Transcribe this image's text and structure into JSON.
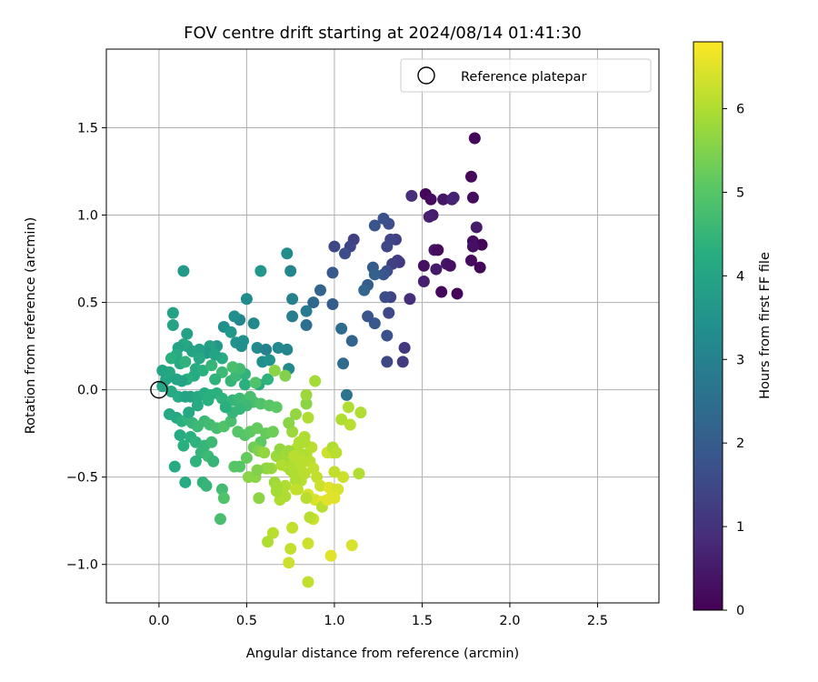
{
  "chart_data": {
    "type": "scatter",
    "title": "FOV centre drift starting at 2024/08/14 01:41:30",
    "xlabel": "Angular distance from reference (arcmin)",
    "ylabel": "Rotation from reference (arcmin)",
    "xlim": [
      -0.3,
      2.85
    ],
    "ylim": [
      -1.22,
      1.95
    ],
    "xticks": [
      0.0,
      0.5,
      1.0,
      1.5,
      2.0,
      2.5
    ],
    "xtick_labels": [
      "0.0",
      "0.5",
      "1.0",
      "1.5",
      "2.0",
      "2.5"
    ],
    "yticks": [
      -1.0,
      -0.5,
      0.0,
      0.5,
      1.0,
      1.5
    ],
    "ytick_labels": [
      "−1.0",
      "−0.5",
      "0.0",
      "0.5",
      "1.0",
      "1.5"
    ],
    "grid": true,
    "legend": {
      "position": "top-right",
      "entries": [
        "Reference platepar"
      ]
    },
    "reference_point": {
      "x": 0.0,
      "y": 0.0
    },
    "colorbar": {
      "label": "Hours from first FF file",
      "colormap": "viridis",
      "range": [
        0,
        6.8
      ],
      "ticks": [
        0,
        1,
        2,
        3,
        4,
        5,
        6
      ],
      "tick_labels": [
        "0",
        "1",
        "2",
        "3",
        "4",
        "5",
        "6"
      ]
    },
    "points": [
      [
        1.8,
        1.44,
        0.1
      ],
      [
        1.78,
        1.22,
        0.15
      ],
      [
        1.79,
        1.1,
        0.2
      ],
      [
        1.52,
        1.12,
        0.1
      ],
      [
        1.55,
        1.09,
        0.2
      ],
      [
        1.56,
        1.0,
        0.5
      ],
      [
        1.54,
        0.99,
        0.6
      ],
      [
        1.62,
        1.09,
        0.4
      ],
      [
        1.67,
        1.09,
        0.6
      ],
      [
        1.68,
        1.1,
        0.7
      ],
      [
        1.44,
        1.11,
        0.9
      ],
      [
        1.81,
        0.93,
        0.5
      ],
      [
        1.79,
        0.85,
        0.2
      ],
      [
        1.84,
        0.83,
        0.1
      ],
      [
        1.79,
        0.82,
        0.3
      ],
      [
        1.57,
        0.8,
        0.4
      ],
      [
        1.59,
        0.8,
        0.2
      ],
      [
        1.51,
        0.71,
        0.3
      ],
      [
        1.58,
        0.69,
        0.5
      ],
      [
        1.64,
        0.72,
        0.4
      ],
      [
        1.66,
        0.71,
        0.3
      ],
      [
        1.78,
        0.74,
        0.2
      ],
      [
        1.83,
        0.7,
        0.1
      ],
      [
        1.61,
        0.56,
        0.1
      ],
      [
        1.7,
        0.55,
        0.1
      ],
      [
        1.51,
        0.62,
        0.6
      ],
      [
        1.43,
        0.52,
        0.9
      ],
      [
        1.37,
        0.73,
        1.1
      ],
      [
        1.35,
        0.86,
        1.3
      ],
      [
        1.32,
        0.86,
        1.4
      ],
      [
        1.3,
        0.82,
        1.5
      ],
      [
        1.31,
        0.95,
        1.6
      ],
      [
        1.28,
        0.98,
        1.7
      ],
      [
        1.23,
        0.94,
        1.8
      ],
      [
        1.36,
        0.74,
        1.2
      ],
      [
        1.33,
        0.72,
        1.3
      ],
      [
        1.3,
        0.68,
        1.6
      ],
      [
        1.28,
        0.66,
        1.8
      ],
      [
        1.22,
        0.7,
        2.0
      ],
      [
        1.23,
        0.66,
        2.1
      ],
      [
        1.19,
        0.6,
        2.0
      ],
      [
        1.17,
        0.57,
        2.2
      ],
      [
        1.32,
        0.53,
        1.4
      ],
      [
        1.29,
        0.53,
        1.6
      ],
      [
        1.31,
        0.44,
        1.5
      ],
      [
        1.23,
        0.38,
        1.9
      ],
      [
        1.3,
        0.31,
        1.7
      ],
      [
        1.19,
        0.42,
        1.8
      ],
      [
        1.4,
        0.24,
        1.1
      ],
      [
        1.39,
        0.16,
        1.2
      ],
      [
        1.3,
        0.16,
        1.5
      ],
      [
        1.11,
        0.86,
        1.3
      ],
      [
        1.09,
        0.82,
        1.4
      ],
      [
        1.0,
        0.82,
        1.5
      ],
      [
        1.06,
        0.78,
        1.6
      ],
      [
        0.99,
        0.67,
        1.9
      ],
      [
        0.92,
        0.57,
        2.2
      ],
      [
        0.88,
        0.5,
        2.3
      ],
      [
        0.99,
        0.49,
        2.0
      ],
      [
        1.04,
        0.35,
        2.4
      ],
      [
        1.1,
        0.28,
        2.2
      ],
      [
        1.05,
        0.15,
        2.4
      ],
      [
        1.07,
        -0.03,
        2.6
      ],
      [
        0.84,
        0.37,
        2.5
      ],
      [
        0.84,
        0.45,
        2.8
      ],
      [
        0.76,
        0.42,
        2.9
      ],
      [
        0.76,
        0.52,
        3.0
      ],
      [
        0.73,
        0.78,
        3.3
      ],
      [
        0.75,
        0.68,
        3.1
      ],
      [
        0.58,
        0.68,
        3.6
      ],
      [
        0.5,
        0.52,
        3.3
      ],
      [
        0.54,
        0.38,
        3.2
      ],
      [
        0.46,
        0.4,
        3.1
      ],
      [
        0.43,
        0.42,
        3.4
      ],
      [
        0.37,
        0.36,
        3.4
      ],
      [
        0.41,
        0.33,
        3.6
      ],
      [
        0.48,
        0.28,
        3.4
      ],
      [
        0.56,
        0.24,
        3.3
      ],
      [
        0.61,
        0.23,
        3.0
      ],
      [
        0.68,
        0.24,
        3.2
      ],
      [
        0.73,
        0.23,
        3.1
      ],
      [
        0.59,
        0.16,
        3.4
      ],
      [
        0.63,
        0.17,
        3.5
      ],
      [
        0.74,
        0.12,
        3.2
      ],
      [
        0.44,
        0.27,
        3.5
      ],
      [
        0.47,
        0.25,
        3.4
      ],
      [
        0.33,
        0.25,
        3.6
      ],
      [
        0.29,
        0.25,
        3.9
      ],
      [
        0.27,
        0.21,
        3.7
      ],
      [
        0.23,
        0.23,
        3.9
      ],
      [
        0.19,
        0.22,
        4.0
      ],
      [
        0.16,
        0.25,
        3.9
      ],
      [
        0.16,
        0.32,
        3.9
      ],
      [
        0.14,
        0.26,
        4.1
      ],
      [
        0.11,
        0.24,
        3.9
      ],
      [
        0.1,
        0.2,
        4.2
      ],
      [
        0.08,
        0.37,
        4.0
      ],
      [
        0.08,
        0.44,
        3.9
      ],
      [
        0.14,
        0.68,
        3.7
      ],
      [
        0.07,
        0.18,
        4.3
      ],
      [
        0.12,
        0.15,
        4.1
      ],
      [
        0.15,
        0.16,
        4.4
      ],
      [
        0.21,
        0.12,
        4.2
      ],
      [
        0.25,
        0.11,
        4.3
      ],
      [
        0.3,
        0.14,
        4.5
      ],
      [
        0.36,
        0.1,
        4.6
      ],
      [
        0.32,
        0.06,
        4.4
      ],
      [
        0.41,
        0.05,
        4.5
      ],
      [
        0.44,
        0.08,
        4.6
      ],
      [
        0.49,
        0.09,
        4.4
      ],
      [
        0.46,
        0.12,
        4.7
      ],
      [
        0.49,
        0.03,
        4.3
      ],
      [
        0.57,
        0.03,
        4.2
      ],
      [
        0.62,
        0.06,
        4.4
      ],
      [
        0.42,
        0.13,
        4.8
      ],
      [
        0.36,
        0.18,
        4.2
      ],
      [
        0.32,
        0.2,
        4.0
      ],
      [
        0.23,
        0.18,
        4.1
      ],
      [
        0.2,
        0.08,
        4.2
      ],
      [
        0.16,
        0.06,
        4.3
      ],
      [
        0.13,
        0.05,
        4.0
      ],
      [
        0.1,
        0.06,
        4.0
      ],
      [
        0.06,
        0.1,
        4.1
      ],
      [
        0.04,
        0.06,
        4.0
      ],
      [
        0.04,
        0.1,
        4.1
      ],
      [
        0.02,
        0.11,
        4.0
      ],
      [
        0.02,
        0.02,
        4.0
      ],
      [
        0.07,
        -0.01,
        4.1
      ],
      [
        0.11,
        -0.04,
        4.2
      ],
      [
        0.15,
        -0.04,
        4.0
      ],
      [
        0.18,
        -0.04,
        4.0
      ],
      [
        0.22,
        -0.04,
        4.1
      ],
      [
        0.26,
        -0.02,
        4.2
      ],
      [
        0.29,
        -0.03,
        4.3
      ],
      [
        0.33,
        -0.02,
        4.3
      ],
      [
        0.36,
        -0.05,
        4.4
      ],
      [
        0.42,
        -0.06,
        4.5
      ],
      [
        0.46,
        -0.05,
        4.6
      ],
      [
        0.5,
        -0.06,
        4.7
      ],
      [
        0.54,
        -0.07,
        4.8
      ],
      [
        0.58,
        -0.08,
        4.9
      ],
      [
        0.63,
        -0.09,
        5.0
      ],
      [
        0.67,
        -0.1,
        5.1
      ],
      [
        0.06,
        -0.14,
        4.1
      ],
      [
        0.1,
        -0.16,
        4.1
      ],
      [
        0.13,
        -0.18,
        4.3
      ],
      [
        0.16,
        -0.17,
        4.4
      ],
      [
        0.19,
        -0.19,
        4.5
      ],
      [
        0.22,
        -0.21,
        4.6
      ],
      [
        0.26,
        -0.18,
        4.6
      ],
      [
        0.29,
        -0.2,
        4.7
      ],
      [
        0.33,
        -0.22,
        4.8
      ],
      [
        0.37,
        -0.21,
        4.9
      ],
      [
        0.41,
        -0.18,
        4.8
      ],
      [
        0.45,
        -0.24,
        5.0
      ],
      [
        0.49,
        -0.26,
        5.0
      ],
      [
        0.52,
        -0.24,
        5.1
      ],
      [
        0.56,
        -0.22,
        5.2
      ],
      [
        0.58,
        -0.3,
        5.1
      ],
      [
        0.61,
        -0.25,
        5.2
      ],
      [
        0.65,
        -0.24,
        5.3
      ],
      [
        0.12,
        -0.26,
        4.2
      ],
      [
        0.18,
        -0.27,
        4.3
      ],
      [
        0.21,
        -0.3,
        4.4
      ],
      [
        0.26,
        -0.32,
        4.5
      ],
      [
        0.3,
        -0.3,
        4.6
      ],
      [
        0.24,
        -0.36,
        4.5
      ],
      [
        0.28,
        -0.38,
        4.6
      ],
      [
        0.31,
        -0.41,
        4.5
      ],
      [
        0.21,
        -0.41,
        4.4
      ],
      [
        0.14,
        -0.32,
        4.3
      ],
      [
        0.09,
        -0.44,
        4.2
      ],
      [
        0.15,
        -0.53,
        4.2
      ],
      [
        0.25,
        -0.53,
        4.4
      ],
      [
        0.27,
        -0.55,
        4.5
      ],
      [
        0.36,
        -0.57,
        4.7
      ],
      [
        0.37,
        -0.62,
        4.9
      ],
      [
        0.35,
        -0.74,
        4.8
      ],
      [
        0.43,
        -0.44,
        5.0
      ],
      [
        0.46,
        -0.44,
        5.0
      ],
      [
        0.5,
        -0.39,
        5.2
      ],
      [
        0.54,
        -0.33,
        5.3
      ],
      [
        0.57,
        -0.35,
        5.5
      ],
      [
        0.51,
        -0.5,
        5.6
      ],
      [
        0.55,
        -0.5,
        5.6
      ],
      [
        0.57,
        -0.62,
        5.6
      ],
      [
        0.61,
        -0.45,
        5.7
      ],
      [
        0.64,
        -0.45,
        5.8
      ],
      [
        0.66,
        -0.53,
        5.8
      ],
      [
        0.67,
        -0.38,
        5.8
      ],
      [
        0.69,
        -0.34,
        5.7
      ],
      [
        0.71,
        -0.4,
        5.8
      ],
      [
        0.73,
        -0.44,
        5.9
      ],
      [
        0.75,
        -0.46,
        5.9
      ],
      [
        0.77,
        -0.48,
        6.0
      ],
      [
        0.79,
        -0.5,
        6.0
      ],
      [
        0.81,
        -0.52,
        6.1
      ],
      [
        0.83,
        -0.48,
        6.1
      ],
      [
        0.79,
        -0.33,
        6.0
      ],
      [
        0.73,
        -0.36,
        5.9
      ],
      [
        0.76,
        -0.24,
        5.8
      ],
      [
        0.74,
        -0.19,
        5.6
      ],
      [
        0.78,
        -0.14,
        5.7
      ],
      [
        0.84,
        -0.08,
        5.6
      ],
      [
        0.81,
        -0.37,
        6.0
      ],
      [
        0.84,
        -0.37,
        6.0
      ],
      [
        0.87,
        -0.33,
        6.1
      ],
      [
        0.85,
        -0.16,
        6.0
      ],
      [
        0.84,
        -0.03,
        5.8
      ],
      [
        0.89,
        0.05,
        5.9
      ],
      [
        0.66,
        0.11,
        5.6
      ],
      [
        0.72,
        0.08,
        5.5
      ],
      [
        0.55,
        0.04,
        4.9
      ],
      [
        0.52,
        -0.04,
        4.8
      ],
      [
        0.5,
        -0.09,
        4.6
      ],
      [
        0.46,
        -0.11,
        4.5
      ],
      [
        0.42,
        -0.13,
        4.5
      ],
      [
        0.38,
        -0.1,
        4.3
      ],
      [
        0.28,
        -0.06,
        4.3
      ],
      [
        0.22,
        -0.09,
        4.2
      ],
      [
        0.17,
        -0.13,
        4.1
      ],
      [
        0.83,
        -0.3,
        6.0
      ],
      [
        0.86,
        -0.41,
        6.1
      ],
      [
        0.88,
        -0.45,
        6.2
      ],
      [
        0.9,
        -0.5,
        6.2
      ],
      [
        0.92,
        -0.55,
        6.3
      ],
      [
        0.85,
        -0.6,
        6.4
      ],
      [
        0.89,
        -0.63,
        6.4
      ],
      [
        0.93,
        -0.64,
        6.5
      ],
      [
        0.97,
        -0.56,
        6.5
      ],
      [
        0.99,
        -0.59,
        6.5
      ],
      [
        1.02,
        -0.57,
        6.4
      ],
      [
        1.05,
        -0.5,
        6.3
      ],
      [
        1.0,
        -0.47,
        6.2
      ],
      [
        0.99,
        -0.36,
        6.2
      ],
      [
        0.96,
        -0.36,
        6.3
      ],
      [
        0.99,
        -0.33,
        6.0
      ],
      [
        1.01,
        -0.36,
        6.1
      ],
      [
        1.04,
        -0.17,
        6.0
      ],
      [
        1.08,
        -0.1,
        6.0
      ],
      [
        1.09,
        -0.2,
        6.1
      ],
      [
        1.15,
        -0.13,
        6.0
      ],
      [
        1.14,
        -0.48,
        6.0
      ],
      [
        1.1,
        -0.89,
        6.4
      ],
      [
        0.98,
        -0.95,
        6.5
      ],
      [
        0.85,
        -0.88,
        6.3
      ],
      [
        0.88,
        -0.74,
        6.3
      ],
      [
        0.84,
        -0.62,
        6.1
      ],
      [
        0.85,
        -1.1,
        6.2
      ],
      [
        0.75,
        -0.91,
        6.2
      ],
      [
        0.76,
        -0.79,
        6.2
      ],
      [
        0.74,
        -0.99,
        6.3
      ],
      [
        0.65,
        -0.82,
        6.1
      ],
      [
        0.62,
        -0.87,
        6.0
      ],
      [
        0.69,
        -0.63,
        6.0
      ],
      [
        0.72,
        -0.61,
        6.0
      ],
      [
        0.79,
        -0.57,
        6.1
      ],
      [
        0.78,
        -0.52,
        6.0
      ],
      [
        0.8,
        -0.3,
        6.0
      ],
      [
        0.83,
        -0.27,
        6.0
      ],
      [
        0.79,
        -0.42,
        6.0
      ],
      [
        0.72,
        -0.55,
        6.0
      ],
      [
        0.67,
        -0.58,
        5.9
      ],
      [
        0.62,
        -0.45,
        5.7
      ],
      [
        0.56,
        -0.46,
        5.5
      ],
      [
        0.74,
        -0.35,
        5.8
      ],
      [
        0.76,
        -0.43,
        6.0
      ],
      [
        0.81,
        -0.43,
        6.1
      ],
      [
        0.86,
        -0.73,
        6.1
      ],
      [
        0.93,
        -0.67,
        6.1
      ],
      [
        0.96,
        -0.63,
        6.5
      ],
      [
        1.0,
        -0.62,
        6.5
      ],
      [
        0.78,
        -0.57,
        6.2
      ],
      [
        0.81,
        -0.4,
        6.1
      ],
      [
        0.77,
        -0.38,
        6.1
      ],
      [
        0.7,
        -0.43,
        6.0
      ],
      [
        0.67,
        -0.55,
        5.9
      ],
      [
        0.6,
        -0.36,
        5.7
      ]
    ]
  }
}
